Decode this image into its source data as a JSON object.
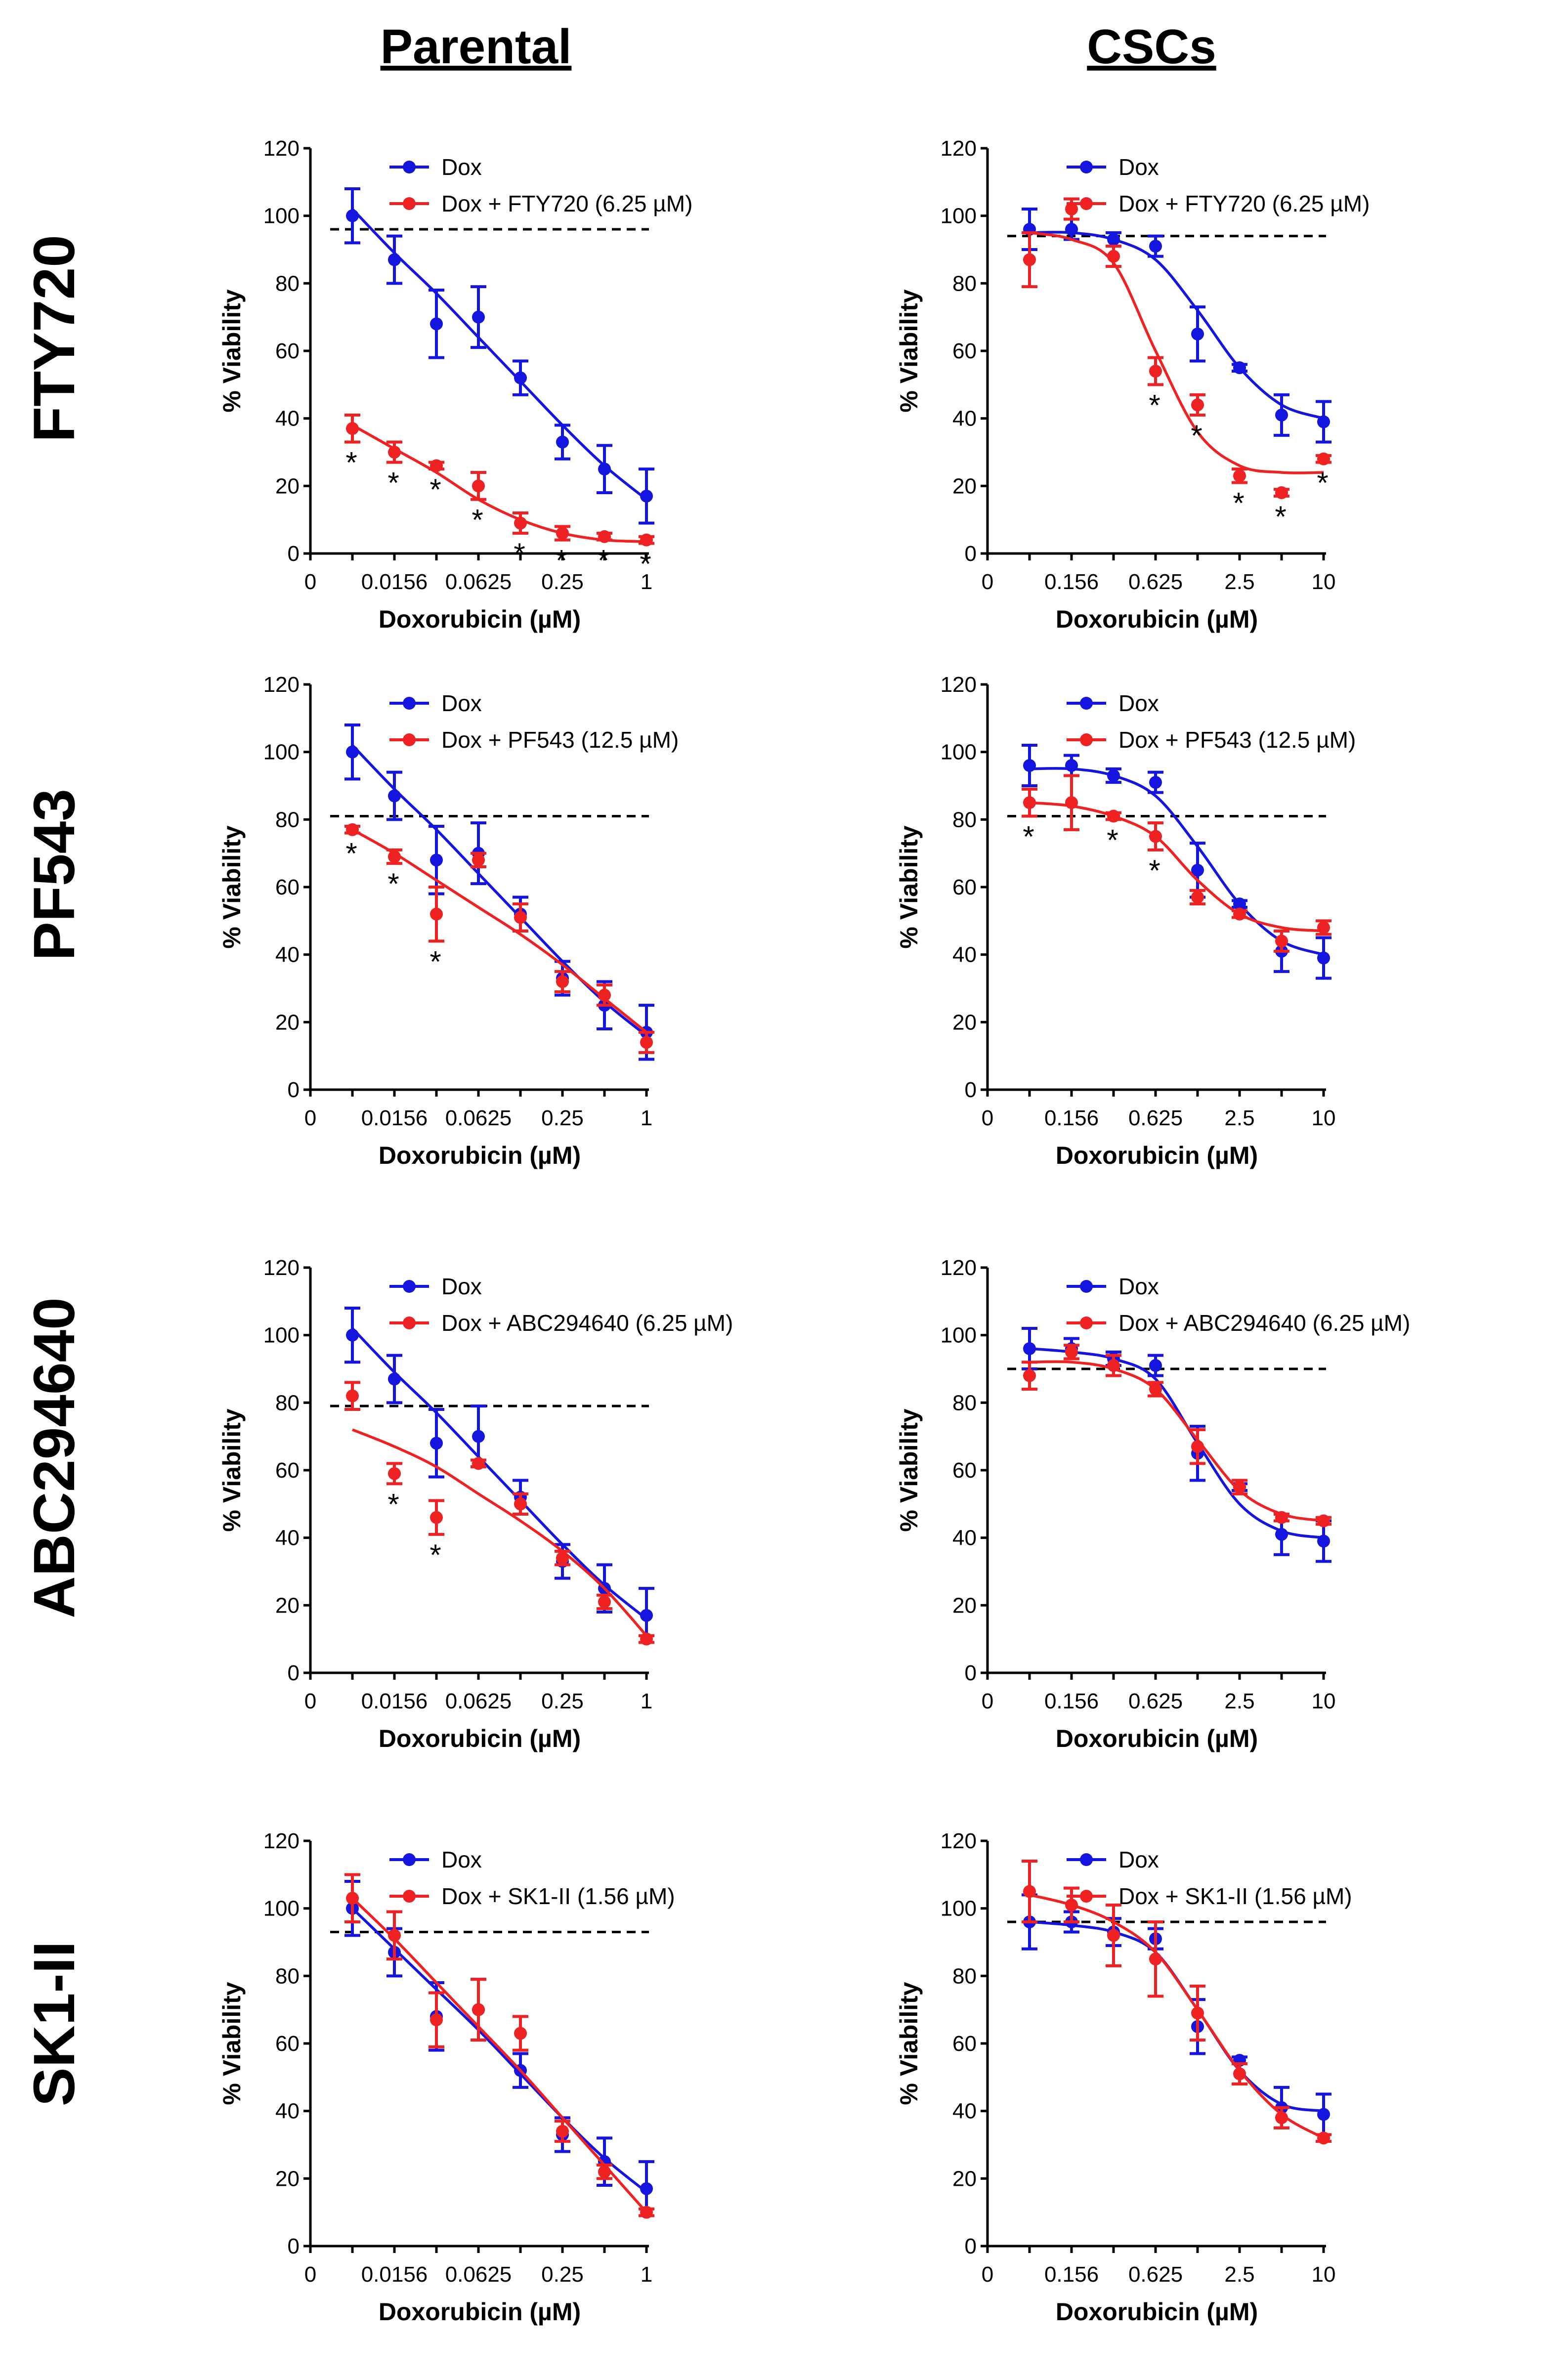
{
  "column_titles": [
    "Parental",
    "CSCs"
  ],
  "row_titles": [
    "FTY720",
    "PF543",
    "ABC294640",
    "SK1-II"
  ],
  "colors": {
    "dox": "#1515E0",
    "combo": "#EE2222",
    "threshold": "#000000",
    "axis": "#000000"
  },
  "chart_data": [
    {
      "panel": "FTY720-Parental",
      "type": "line",
      "xlabel": "Doxorubicin (µM)",
      "ylabel": "% Viability",
      "x_ticks": [
        "0",
        "0.0156",
        "0.0625",
        "0.25",
        "1"
      ],
      "x_categories": [
        "0.0078",
        "0.0156",
        "0.03125",
        "0.0625",
        "0.125",
        "0.25",
        "0.5",
        "1"
      ],
      "ylim": [
        0,
        120
      ],
      "y_ticks": [
        0,
        20,
        40,
        60,
        80,
        100,
        120
      ],
      "threshold": 96,
      "series": [
        {
          "name": "Dox",
          "color": "#1515E0",
          "values": [
            100,
            87,
            68,
            70,
            52,
            33,
            25,
            17
          ],
          "errors": [
            8,
            7,
            10,
            9,
            5,
            5,
            7,
            8
          ],
          "fit": [
            102,
            89,
            77,
            64,
            51,
            38,
            26,
            16
          ],
          "stars": []
        },
        {
          "name": "Dox + FTY720 (6.25 µM)",
          "color": "#EE2222",
          "values": [
            37,
            30,
            26,
            20,
            9,
            6,
            5,
            4
          ],
          "errors": [
            4,
            3,
            1,
            4,
            3,
            2,
            1,
            1
          ],
          "fit": [
            38,
            31,
            24,
            16,
            10,
            6,
            4,
            3.5
          ],
          "stars": [
            0,
            1,
            2,
            3,
            4,
            5,
            6,
            7
          ]
        }
      ]
    },
    {
      "panel": "FTY720-CSCs",
      "type": "line",
      "xlabel": "Doxorubicin (µM)",
      "ylabel": "% Viability",
      "x_ticks": [
        "0",
        "0.156",
        "0.625",
        "2.5",
        "10"
      ],
      "x_categories": [
        "0.078",
        "0.156",
        "0.3125",
        "0.625",
        "1.25",
        "2.5",
        "5",
        "10"
      ],
      "ylim": [
        0,
        120
      ],
      "y_ticks": [
        0,
        20,
        40,
        60,
        80,
        100,
        120
      ],
      "threshold": 94,
      "series": [
        {
          "name": "Dox",
          "color": "#1515E0",
          "values": [
            96,
            96,
            93,
            91,
            65,
            55,
            41,
            39
          ],
          "errors": [
            6,
            3,
            2,
            3,
            8,
            1,
            6,
            6
          ],
          "fit": [
            95,
            95,
            93,
            87,
            72,
            55,
            44,
            40
          ],
          "stars": []
        },
        {
          "name": "Dox + FTY720 (6.25 µM)",
          "color": "#EE2222",
          "values": [
            87,
            102,
            88,
            54,
            44,
            23,
            18,
            28
          ],
          "errors": [
            8,
            3,
            3,
            4,
            3,
            2,
            1,
            1
          ],
          "fit": [
            95,
            93,
            86,
            60,
            36,
            26,
            24,
            24
          ],
          "stars": [
            3,
            4,
            5,
            6,
            7
          ]
        }
      ]
    },
    {
      "panel": "PF543-Parental",
      "type": "line",
      "xlabel": "Doxorubicin (µM)",
      "ylabel": "% Viability",
      "x_ticks": [
        "0",
        "0.0156",
        "0.0625",
        "0.25",
        "1"
      ],
      "x_categories": [
        "0.0078",
        "0.0156",
        "0.03125",
        "0.0625",
        "0.125",
        "0.25",
        "0.5",
        "1"
      ],
      "ylim": [
        0,
        120
      ],
      "y_ticks": [
        0,
        20,
        40,
        60,
        80,
        100,
        120
      ],
      "threshold": 81,
      "series": [
        {
          "name": "Dox",
          "color": "#1515E0",
          "values": [
            100,
            87,
            68,
            70,
            52,
            33,
            25,
            17
          ],
          "errors": [
            8,
            7,
            10,
            9,
            5,
            5,
            7,
            8
          ],
          "fit": [
            102,
            89,
            77,
            64,
            51,
            38,
            26,
            16
          ],
          "stars": []
        },
        {
          "name": "Dox + PF543 (12.5 µM)",
          "color": "#EE2222",
          "values": [
            77,
            69,
            52,
            68,
            51,
            32,
            28,
            14
          ],
          "errors": [
            1,
            2,
            8,
            2,
            4,
            3,
            3,
            3
          ],
          "fit": [
            77,
            70,
            62,
            54,
            46,
            37,
            27,
            17
          ],
          "stars": [
            0,
            1,
            2
          ]
        }
      ]
    },
    {
      "panel": "PF543-CSCs",
      "type": "line",
      "xlabel": "Doxorubicin (µM)",
      "ylabel": "% Viability",
      "x_ticks": [
        "0",
        "0.156",
        "0.625",
        "2.5",
        "10"
      ],
      "x_categories": [
        "0.078",
        "0.156",
        "0.3125",
        "0.625",
        "1.25",
        "2.5",
        "5",
        "10"
      ],
      "ylim": [
        0,
        120
      ],
      "y_ticks": [
        0,
        20,
        40,
        60,
        80,
        100,
        120
      ],
      "threshold": 81,
      "series": [
        {
          "name": "Dox",
          "color": "#1515E0",
          "values": [
            96,
            96,
            93,
            91,
            65,
            55,
            41,
            39
          ],
          "errors": [
            6,
            3,
            2,
            3,
            8,
            1,
            6,
            6
          ],
          "fit": [
            95,
            95,
            93,
            87,
            72,
            55,
            44,
            40
          ],
          "stars": []
        },
        {
          "name": "Dox + PF543 (12.5 µM)",
          "color": "#EE2222",
          "values": [
            85,
            85,
            81,
            75,
            57,
            52,
            44,
            48
          ],
          "errors": [
            4,
            8,
            1,
            4,
            2,
            1,
            3,
            2
          ],
          "fit": [
            85,
            84,
            81,
            75,
            62,
            52,
            48,
            47
          ],
          "stars": [
            0,
            2,
            3
          ]
        }
      ]
    },
    {
      "panel": "ABC294640-Parental",
      "type": "line",
      "xlabel": "Doxorubicin (µM)",
      "ylabel": "% Viability",
      "x_ticks": [
        "0",
        "0.0156",
        "0.0625",
        "0.25",
        "1"
      ],
      "x_categories": [
        "0.0078",
        "0.0156",
        "0.03125",
        "0.0625",
        "0.125",
        "0.25",
        "0.5",
        "1"
      ],
      "ylim": [
        0,
        120
      ],
      "y_ticks": [
        0,
        20,
        40,
        60,
        80,
        100,
        120
      ],
      "threshold": 79,
      "series": [
        {
          "name": "Dox",
          "color": "#1515E0",
          "values": [
            100,
            87,
            68,
            70,
            52,
            33,
            25,
            17
          ],
          "errors": [
            8,
            7,
            10,
            9,
            5,
            5,
            7,
            8
          ],
          "fit": [
            102,
            89,
            77,
            64,
            51,
            38,
            26,
            16
          ],
          "stars": []
        },
        {
          "name": "Dox + ABC294640 (6.25 µM)",
          "color": "#EE2222",
          "values": [
            82,
            59,
            46,
            62,
            50,
            34,
            21,
            10
          ],
          "errors": [
            4,
            3,
            5,
            1,
            3,
            2,
            2,
            1
          ],
          "fit": [
            72,
            67,
            61,
            53,
            45,
            36,
            25,
            11
          ],
          "stars": [
            1,
            2
          ]
        }
      ]
    },
    {
      "panel": "ABC294640-CSCs",
      "type": "line",
      "xlabel": "Doxorubicin (µM)",
      "ylabel": "% Viability",
      "x_ticks": [
        "0",
        "0.156",
        "0.625",
        "2.5",
        "10"
      ],
      "x_categories": [
        "0.078",
        "0.156",
        "0.3125",
        "0.625",
        "1.25",
        "2.5",
        "5",
        "10"
      ],
      "ylim": [
        0,
        120
      ],
      "y_ticks": [
        0,
        20,
        40,
        60,
        80,
        100,
        120
      ],
      "threshold": 90,
      "series": [
        {
          "name": "Dox",
          "color": "#1515E0",
          "values": [
            96,
            96,
            93,
            91,
            65,
            55,
            41,
            39
          ],
          "errors": [
            6,
            3,
            2,
            3,
            8,
            1,
            6,
            6
          ],
          "fit": [
            96,
            95,
            93,
            87,
            68,
            50,
            42,
            40
          ],
          "stars": []
        },
        {
          "name": "Dox + ABC294640 (6.25 µM)",
          "color": "#EE2222",
          "values": [
            88,
            95,
            91,
            84,
            67,
            55,
            46,
            45
          ],
          "errors": [
            4,
            2,
            3,
            2,
            5,
            2,
            1,
            1
          ],
          "fit": [
            92,
            92,
            90,
            84,
            69,
            54,
            47,
            45
          ],
          "stars": []
        }
      ]
    },
    {
      "panel": "SK1-II-Parental",
      "type": "line",
      "xlabel": "Doxorubicin (µM)",
      "ylabel": "% Viability",
      "x_ticks": [
        "0",
        "0.0156",
        "0.0625",
        "0.25",
        "1"
      ],
      "x_categories": [
        "0.0078",
        "0.0156",
        "0.03125",
        "0.0625",
        "0.125",
        "0.25",
        "0.5",
        "1"
      ],
      "ylim": [
        0,
        120
      ],
      "y_ticks": [
        0,
        20,
        40,
        60,
        80,
        100,
        120
      ],
      "threshold": 93,
      "series": [
        {
          "name": "Dox",
          "color": "#1515E0",
          "values": [
            100,
            87,
            68,
            70,
            52,
            33,
            25,
            17
          ],
          "errors": [
            8,
            7,
            10,
            9,
            5,
            5,
            7,
            8
          ],
          "fit": [
            100,
            88,
            76,
            64,
            51,
            38,
            26,
            16
          ],
          "stars": []
        },
        {
          "name": "Dox + SK1-II (1.56 µM)",
          "color": "#EE2222",
          "values": [
            103,
            92,
            67,
            70,
            63,
            34,
            22,
            10
          ],
          "errors": [
            7,
            7,
            8,
            9,
            5,
            3,
            2,
            1
          ],
          "fit": [
            103,
            91,
            78,
            65,
            52,
            38,
            24,
            10
          ],
          "stars": []
        }
      ]
    },
    {
      "panel": "SK1-II-CSCs",
      "type": "line",
      "xlabel": "Doxorubicin (µM)",
      "ylabel": "% Viability",
      "x_ticks": [
        "0",
        "0.156",
        "0.625",
        "2.5",
        "10"
      ],
      "x_categories": [
        "0.078",
        "0.156",
        "0.3125",
        "0.625",
        "1.25",
        "2.5",
        "5",
        "10"
      ],
      "ylim": [
        0,
        120
      ],
      "y_ticks": [
        0,
        20,
        40,
        60,
        80,
        100,
        120
      ],
      "threshold": 96,
      "series": [
        {
          "name": "Dox",
          "color": "#1515E0",
          "values": [
            96,
            96,
            93,
            91,
            65,
            55,
            41,
            39
          ],
          "errors": [
            8,
            3,
            4,
            3,
            8,
            1,
            6,
            6
          ],
          "fit": [
            96,
            95,
            93,
            87,
            70,
            52,
            42,
            40
          ],
          "stars": []
        },
        {
          "name": "Dox + SK1-II (1.56 µM)",
          "color": "#EE2222",
          "values": [
            105,
            101,
            92,
            85,
            69,
            51,
            38,
            32
          ],
          "errors": [
            9,
            5,
            9,
            11,
            8,
            3,
            3,
            1
          ],
          "fit": [
            104,
            101,
            96,
            87,
            70,
            52,
            39,
            32
          ],
          "stars": []
        }
      ]
    }
  ]
}
